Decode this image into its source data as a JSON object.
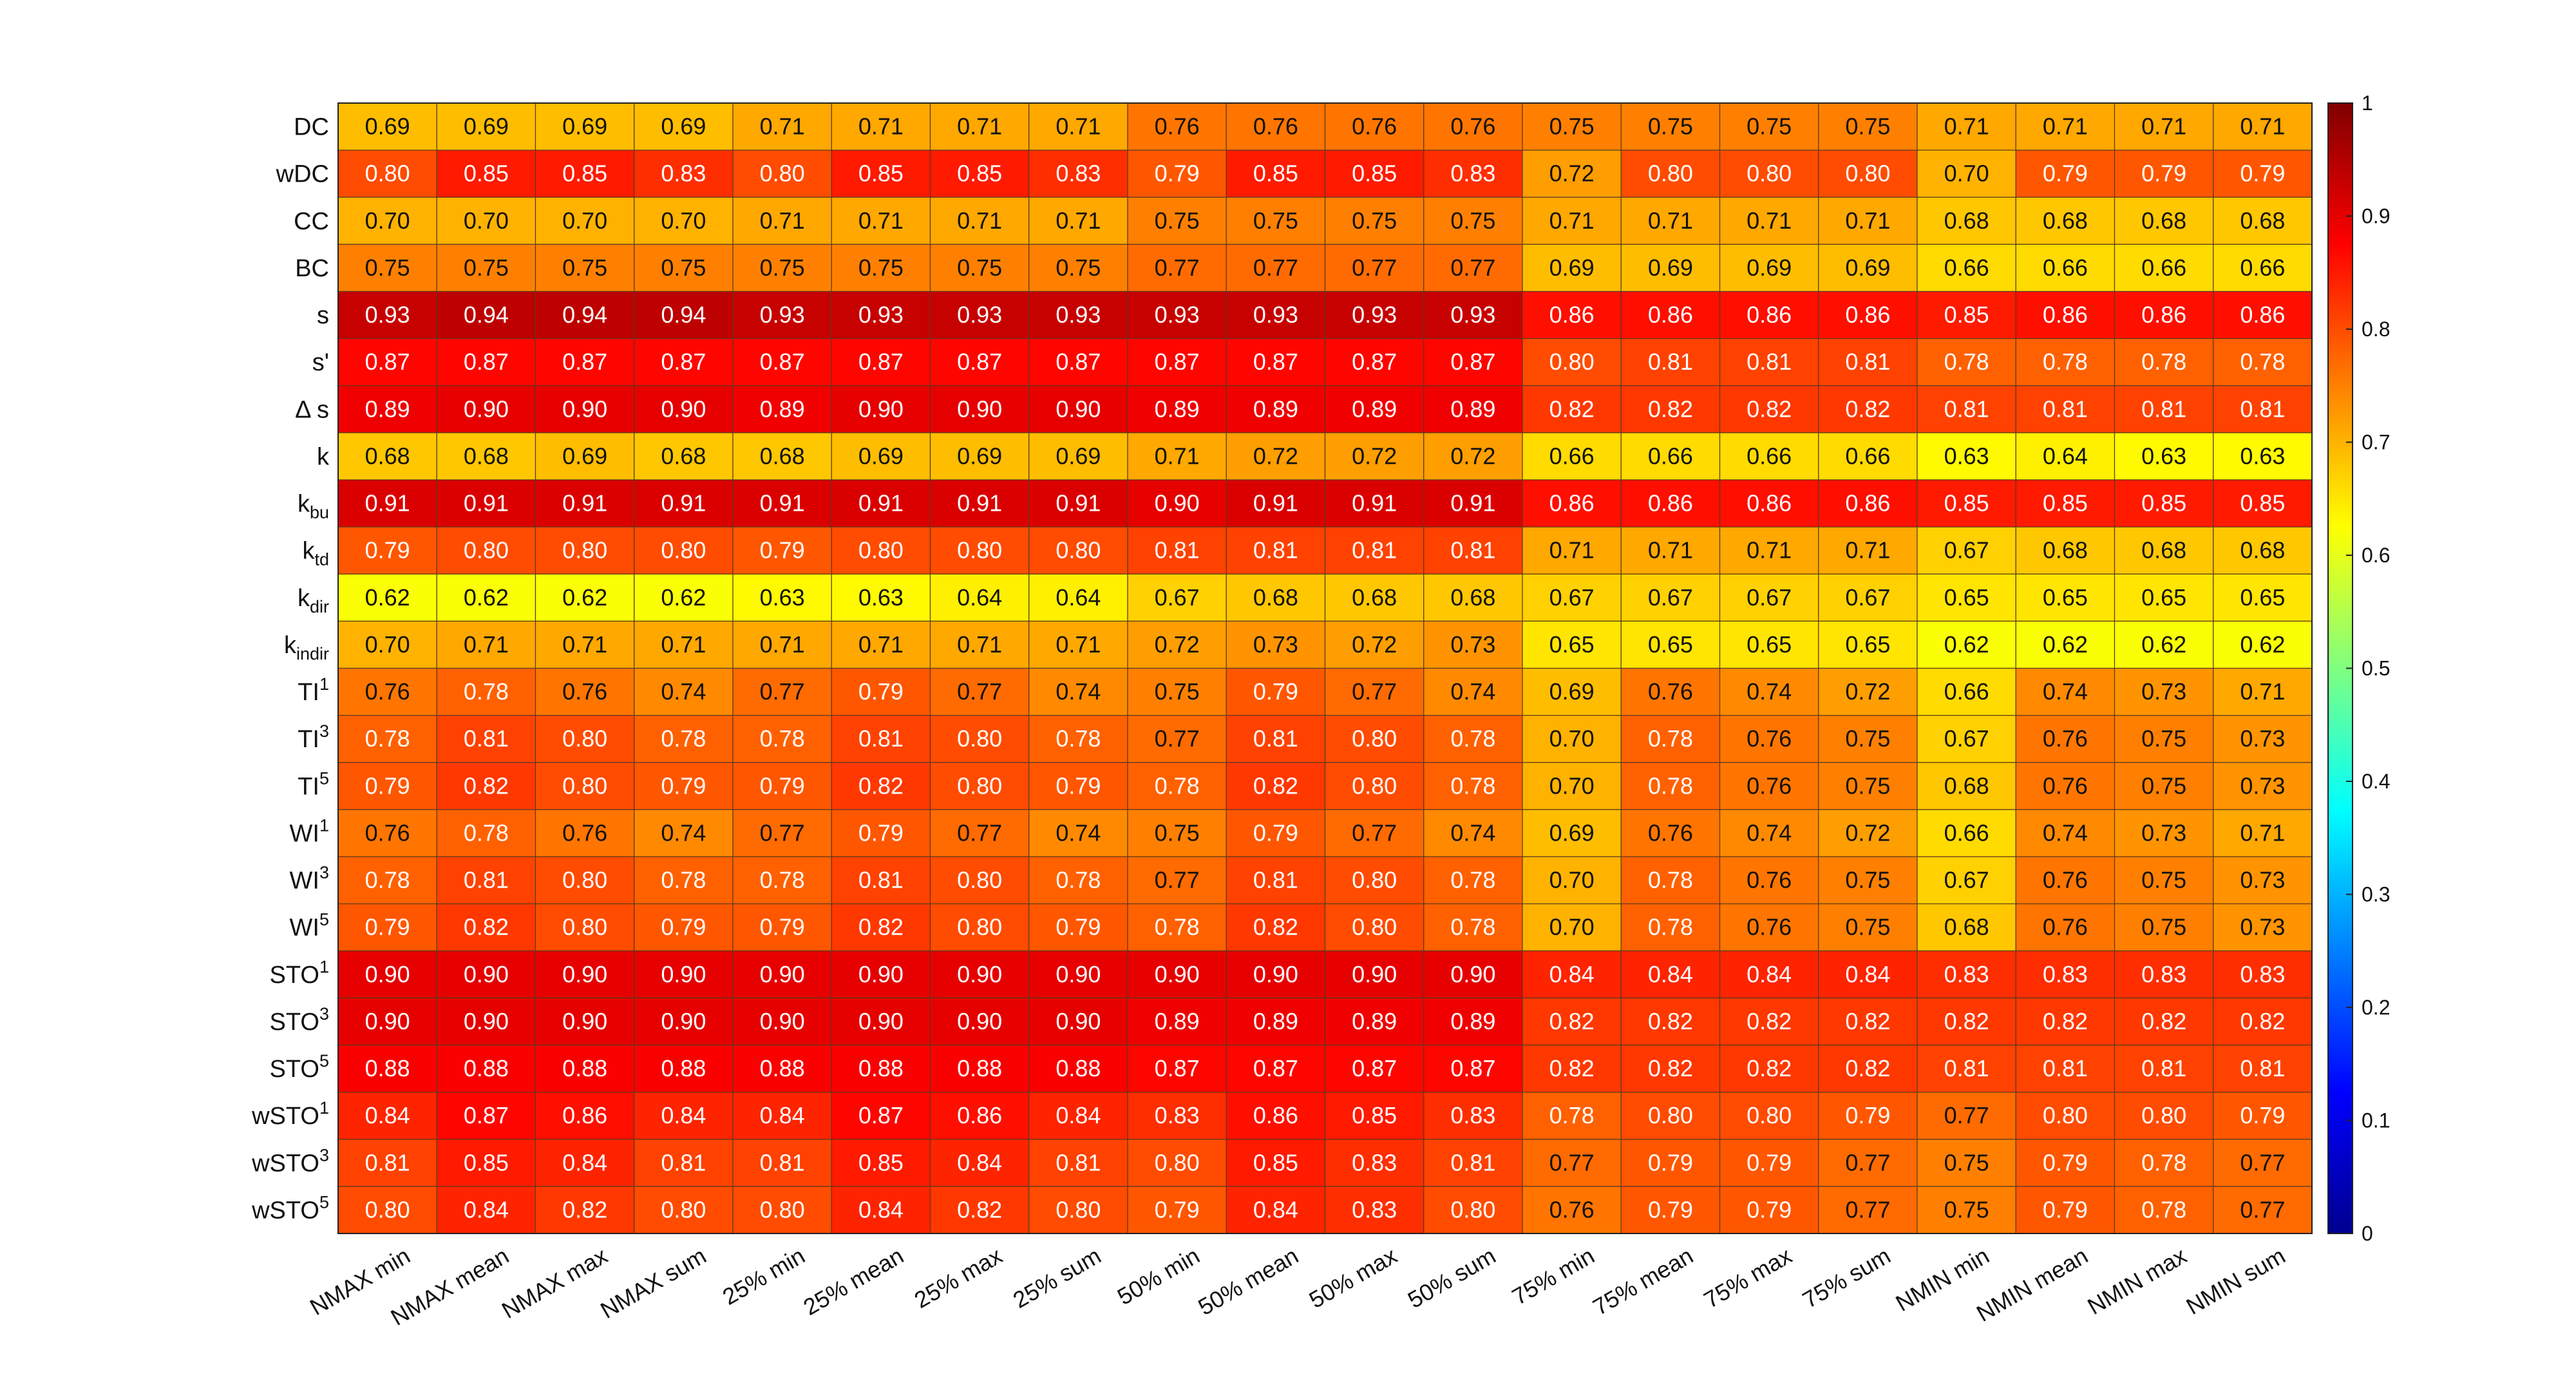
{
  "chart_data": {
    "type": "heatmap",
    "colormap": "jet",
    "clim": [
      0,
      1
    ],
    "grid": true,
    "colorbar": {
      "placement": "right",
      "ticks": [
        0,
        0.1,
        0.2,
        0.3,
        0.4,
        0.5,
        0.6,
        0.7,
        0.8,
        0.9,
        1
      ],
      "tick_labels": [
        "0",
        "0.1",
        "0.2",
        "0.3",
        "0.4",
        "0.5",
        "0.6",
        "0.7",
        "0.8",
        "0.9",
        "1"
      ]
    },
    "rows": [
      {
        "label": "DC",
        "sub": "",
        "sup": ""
      },
      {
        "label": "wDC",
        "sub": "",
        "sup": ""
      },
      {
        "label": "CC",
        "sub": "",
        "sup": ""
      },
      {
        "label": "BC",
        "sub": "",
        "sup": ""
      },
      {
        "label": "s",
        "sub": "",
        "sup": ""
      },
      {
        "label": "s'",
        "sub": "",
        "sup": ""
      },
      {
        "label": "Δ s",
        "sub": "",
        "sup": ""
      },
      {
        "label": "k",
        "sub": "",
        "sup": ""
      },
      {
        "label": "k",
        "sub": "bu",
        "sup": ""
      },
      {
        "label": "k",
        "sub": "td",
        "sup": ""
      },
      {
        "label": "k",
        "sub": "dir",
        "sup": ""
      },
      {
        "label": "k",
        "sub": "indir",
        "sup": ""
      },
      {
        "label": "TI",
        "sub": "",
        "sup": "1"
      },
      {
        "label": "TI",
        "sub": "",
        "sup": "3"
      },
      {
        "label": "TI",
        "sub": "",
        "sup": "5"
      },
      {
        "label": "WI",
        "sub": "",
        "sup": "1"
      },
      {
        "label": "WI",
        "sub": "",
        "sup": "3"
      },
      {
        "label": "WI",
        "sub": "",
        "sup": "5"
      },
      {
        "label": "STO",
        "sub": "",
        "sup": "1"
      },
      {
        "label": "STO",
        "sub": "",
        "sup": "3"
      },
      {
        "label": "STO",
        "sub": "",
        "sup": "5"
      },
      {
        "label": "wSTO",
        "sub": "",
        "sup": "1"
      },
      {
        "label": "wSTO",
        "sub": "",
        "sup": "3"
      },
      {
        "label": "wSTO",
        "sub": "",
        "sup": "5"
      }
    ],
    "columns": [
      "NMAX min",
      "NMAX mean",
      "NMAX max",
      "NMAX sum",
      "25% min",
      "25% mean",
      "25% max",
      "25% sum",
      "50% min",
      "50% mean",
      "50% max",
      "50% sum",
      "75% min",
      "75% mean",
      "75% max",
      "75% sum",
      "NMIN min",
      "NMIN mean",
      "NMIN max",
      "NMIN sum"
    ],
    "values": [
      [
        0.69,
        0.69,
        0.69,
        0.69,
        0.71,
        0.71,
        0.71,
        0.71,
        0.76,
        0.76,
        0.76,
        0.76,
        0.75,
        0.75,
        0.75,
        0.75,
        0.71,
        0.71,
        0.71,
        0.71
      ],
      [
        0.8,
        0.85,
        0.85,
        0.83,
        0.8,
        0.85,
        0.85,
        0.83,
        0.79,
        0.85,
        0.85,
        0.83,
        0.72,
        0.8,
        0.8,
        0.8,
        0.7,
        0.79,
        0.79,
        0.79
      ],
      [
        0.7,
        0.7,
        0.7,
        0.7,
        0.71,
        0.71,
        0.71,
        0.71,
        0.75,
        0.75,
        0.75,
        0.75,
        0.71,
        0.71,
        0.71,
        0.71,
        0.68,
        0.68,
        0.68,
        0.68
      ],
      [
        0.75,
        0.75,
        0.75,
        0.75,
        0.75,
        0.75,
        0.75,
        0.75,
        0.77,
        0.77,
        0.77,
        0.77,
        0.69,
        0.69,
        0.69,
        0.69,
        0.66,
        0.66,
        0.66,
        0.66
      ],
      [
        0.93,
        0.94,
        0.94,
        0.94,
        0.93,
        0.93,
        0.93,
        0.93,
        0.93,
        0.93,
        0.93,
        0.93,
        0.86,
        0.86,
        0.86,
        0.86,
        0.85,
        0.86,
        0.86,
        0.86
      ],
      [
        0.87,
        0.87,
        0.87,
        0.87,
        0.87,
        0.87,
        0.87,
        0.87,
        0.87,
        0.87,
        0.87,
        0.87,
        0.8,
        0.81,
        0.81,
        0.81,
        0.78,
        0.78,
        0.78,
        0.78
      ],
      [
        0.89,
        0.9,
        0.9,
        0.9,
        0.89,
        0.9,
        0.9,
        0.9,
        0.89,
        0.89,
        0.89,
        0.89,
        0.82,
        0.82,
        0.82,
        0.82,
        0.81,
        0.81,
        0.81,
        0.81
      ],
      [
        0.68,
        0.68,
        0.69,
        0.68,
        0.68,
        0.69,
        0.69,
        0.69,
        0.71,
        0.72,
        0.72,
        0.72,
        0.66,
        0.66,
        0.66,
        0.66,
        0.63,
        0.64,
        0.63,
        0.63
      ],
      [
        0.91,
        0.91,
        0.91,
        0.91,
        0.91,
        0.91,
        0.91,
        0.91,
        0.9,
        0.91,
        0.91,
        0.91,
        0.86,
        0.86,
        0.86,
        0.86,
        0.85,
        0.85,
        0.85,
        0.85
      ],
      [
        0.79,
        0.8,
        0.8,
        0.8,
        0.79,
        0.8,
        0.8,
        0.8,
        0.81,
        0.81,
        0.81,
        0.81,
        0.71,
        0.71,
        0.71,
        0.71,
        0.67,
        0.68,
        0.68,
        0.68
      ],
      [
        0.62,
        0.62,
        0.62,
        0.62,
        0.63,
        0.63,
        0.64,
        0.64,
        0.67,
        0.68,
        0.68,
        0.68,
        0.67,
        0.67,
        0.67,
        0.67,
        0.65,
        0.65,
        0.65,
        0.65
      ],
      [
        0.7,
        0.71,
        0.71,
        0.71,
        0.71,
        0.71,
        0.71,
        0.71,
        0.72,
        0.73,
        0.72,
        0.73,
        0.65,
        0.65,
        0.65,
        0.65,
        0.62,
        0.62,
        0.62,
        0.62
      ],
      [
        0.76,
        0.78,
        0.76,
        0.74,
        0.77,
        0.79,
        0.77,
        0.74,
        0.75,
        0.79,
        0.77,
        0.74,
        0.69,
        0.76,
        0.74,
        0.72,
        0.66,
        0.74,
        0.73,
        0.71
      ],
      [
        0.78,
        0.81,
        0.8,
        0.78,
        0.78,
        0.81,
        0.8,
        0.78,
        0.77,
        0.81,
        0.8,
        0.78,
        0.7,
        0.78,
        0.76,
        0.75,
        0.67,
        0.76,
        0.75,
        0.73
      ],
      [
        0.79,
        0.82,
        0.8,
        0.79,
        0.79,
        0.82,
        0.8,
        0.79,
        0.78,
        0.82,
        0.8,
        0.78,
        0.7,
        0.78,
        0.76,
        0.75,
        0.68,
        0.76,
        0.75,
        0.73
      ],
      [
        0.76,
        0.78,
        0.76,
        0.74,
        0.77,
        0.79,
        0.77,
        0.74,
        0.75,
        0.79,
        0.77,
        0.74,
        0.69,
        0.76,
        0.74,
        0.72,
        0.66,
        0.74,
        0.73,
        0.71
      ],
      [
        0.78,
        0.81,
        0.8,
        0.78,
        0.78,
        0.81,
        0.8,
        0.78,
        0.77,
        0.81,
        0.8,
        0.78,
        0.7,
        0.78,
        0.76,
        0.75,
        0.67,
        0.76,
        0.75,
        0.73
      ],
      [
        0.79,
        0.82,
        0.8,
        0.79,
        0.79,
        0.82,
        0.8,
        0.79,
        0.78,
        0.82,
        0.8,
        0.78,
        0.7,
        0.78,
        0.76,
        0.75,
        0.68,
        0.76,
        0.75,
        0.73
      ],
      [
        0.9,
        0.9,
        0.9,
        0.9,
        0.9,
        0.9,
        0.9,
        0.9,
        0.9,
        0.9,
        0.9,
        0.9,
        0.84,
        0.84,
        0.84,
        0.84,
        0.83,
        0.83,
        0.83,
        0.83
      ],
      [
        0.9,
        0.9,
        0.9,
        0.9,
        0.9,
        0.9,
        0.9,
        0.9,
        0.89,
        0.89,
        0.89,
        0.89,
        0.82,
        0.82,
        0.82,
        0.82,
        0.82,
        0.82,
        0.82,
        0.82
      ],
      [
        0.88,
        0.88,
        0.88,
        0.88,
        0.88,
        0.88,
        0.88,
        0.88,
        0.87,
        0.87,
        0.87,
        0.87,
        0.82,
        0.82,
        0.82,
        0.82,
        0.81,
        0.81,
        0.81,
        0.81
      ],
      [
        0.84,
        0.87,
        0.86,
        0.84,
        0.84,
        0.87,
        0.86,
        0.84,
        0.83,
        0.86,
        0.85,
        0.83,
        0.78,
        0.8,
        0.8,
        0.79,
        0.77,
        0.8,
        0.8,
        0.79
      ],
      [
        0.81,
        0.85,
        0.84,
        0.81,
        0.81,
        0.85,
        0.84,
        0.81,
        0.8,
        0.85,
        0.83,
        0.81,
        0.77,
        0.79,
        0.79,
        0.77,
        0.75,
        0.79,
        0.78,
        0.77
      ],
      [
        0.8,
        0.84,
        0.82,
        0.8,
        0.8,
        0.84,
        0.82,
        0.8,
        0.79,
        0.84,
        0.83,
        0.8,
        0.76,
        0.79,
        0.79,
        0.77,
        0.75,
        0.79,
        0.78,
        0.77
      ]
    ]
  }
}
